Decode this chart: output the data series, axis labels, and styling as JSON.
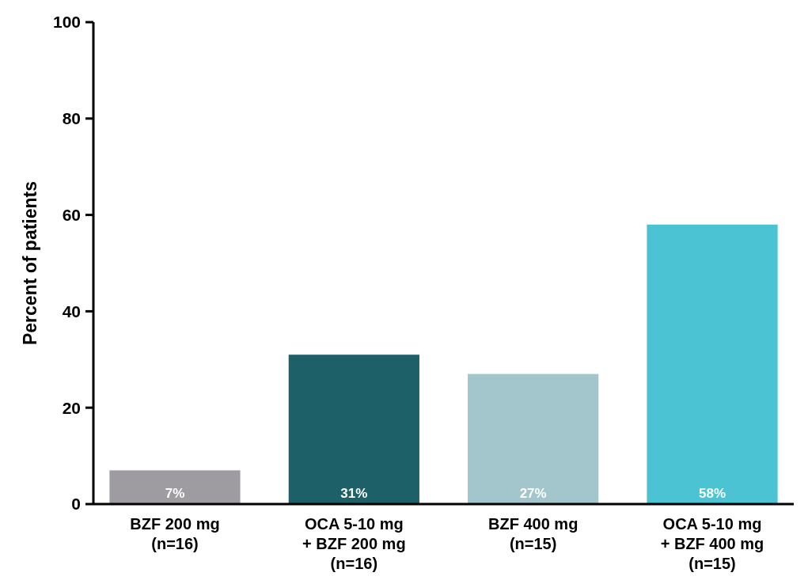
{
  "chart_data": {
    "type": "bar",
    "ylabel": "Percent of patients",
    "categories": [
      "BZF 200 mg\n(n=16)",
      "OCA 5-10 mg\n+ BZF 200 mg\n(n=16)",
      "BZF 400 mg\n(n=15)",
      "OCA 5-10 mg\n+ BZF 400 mg\n(n=15)"
    ],
    "values": [
      7,
      31,
      27,
      58
    ],
    "colors": [
      "#9e9ca0",
      "#1e6068",
      "#a3c6cd",
      "#4bc3d3"
    ],
    "value_labels": [
      "7%",
      "31%",
      "27%",
      "58%"
    ],
    "ylim": [
      0,
      100
    ],
    "yticks": [
      0,
      20,
      40,
      60,
      80,
      100
    ],
    "grid": false
  }
}
